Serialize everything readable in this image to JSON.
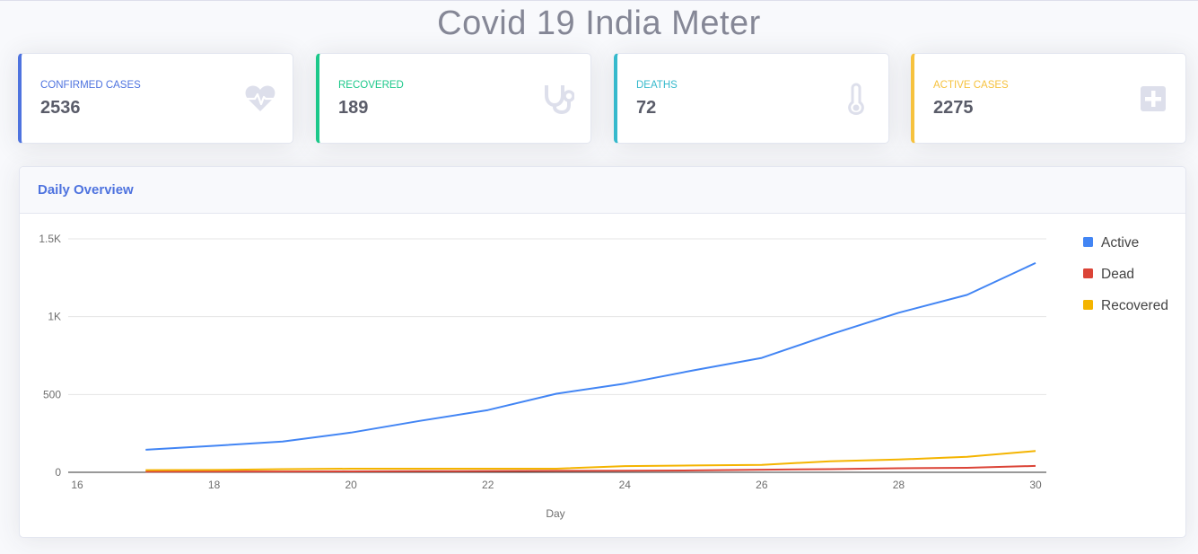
{
  "page": {
    "title": "Covid 19 India Meter"
  },
  "cards": [
    {
      "label": "Confirmed Cases",
      "value": "2536",
      "icon": "heartbeat-icon",
      "color": "#4e73df"
    },
    {
      "label": "Recovered",
      "value": "189",
      "icon": "stethoscope-icon",
      "color": "#1cc88a"
    },
    {
      "label": "Deaths",
      "value": "72",
      "icon": "thermometer-icon",
      "color": "#36b9cc"
    },
    {
      "label": "Active Cases",
      "value": "2275",
      "icon": "plus-square-icon",
      "color": "#f6c23e"
    }
  ],
  "panel": {
    "title": "Daily Overview"
  },
  "chart_data": {
    "type": "line",
    "title": "",
    "xlabel": "Day",
    "ylabel": "",
    "xlim": [
      16,
      30
    ],
    "ylim": [
      0,
      1500
    ],
    "x_ticks": [
      16,
      18,
      20,
      22,
      24,
      26,
      28,
      30
    ],
    "y_ticks": [
      {
        "value": 0,
        "label": "0"
      },
      {
        "value": 500,
        "label": "500"
      },
      {
        "value": 1000,
        "label": "1K"
      },
      {
        "value": 1500,
        "label": "1.5K"
      }
    ],
    "grid": true,
    "legend": "right",
    "x": [
      17,
      18,
      19,
      20,
      21,
      22,
      23,
      24,
      25,
      26,
      27,
      28,
      29,
      30
    ],
    "series": [
      {
        "name": "Active",
        "color": "#4285f4",
        "values": [
          145,
          170,
          198,
          255,
          330,
          400,
          505,
          570,
          655,
          735,
          885,
          1025,
          1140,
          1345
        ]
      },
      {
        "name": "Dead",
        "color": "#db4437",
        "values": [
          4,
          5,
          5,
          6,
          7,
          8,
          9,
          10,
          12,
          17,
          20,
          26,
          29,
          41
        ]
      },
      {
        "name": "Recovered",
        "color": "#f4b400",
        "values": [
          14,
          15,
          20,
          23,
          23,
          23,
          23,
          40,
          44,
          48,
          71,
          82,
          100,
          137
        ]
      }
    ]
  }
}
